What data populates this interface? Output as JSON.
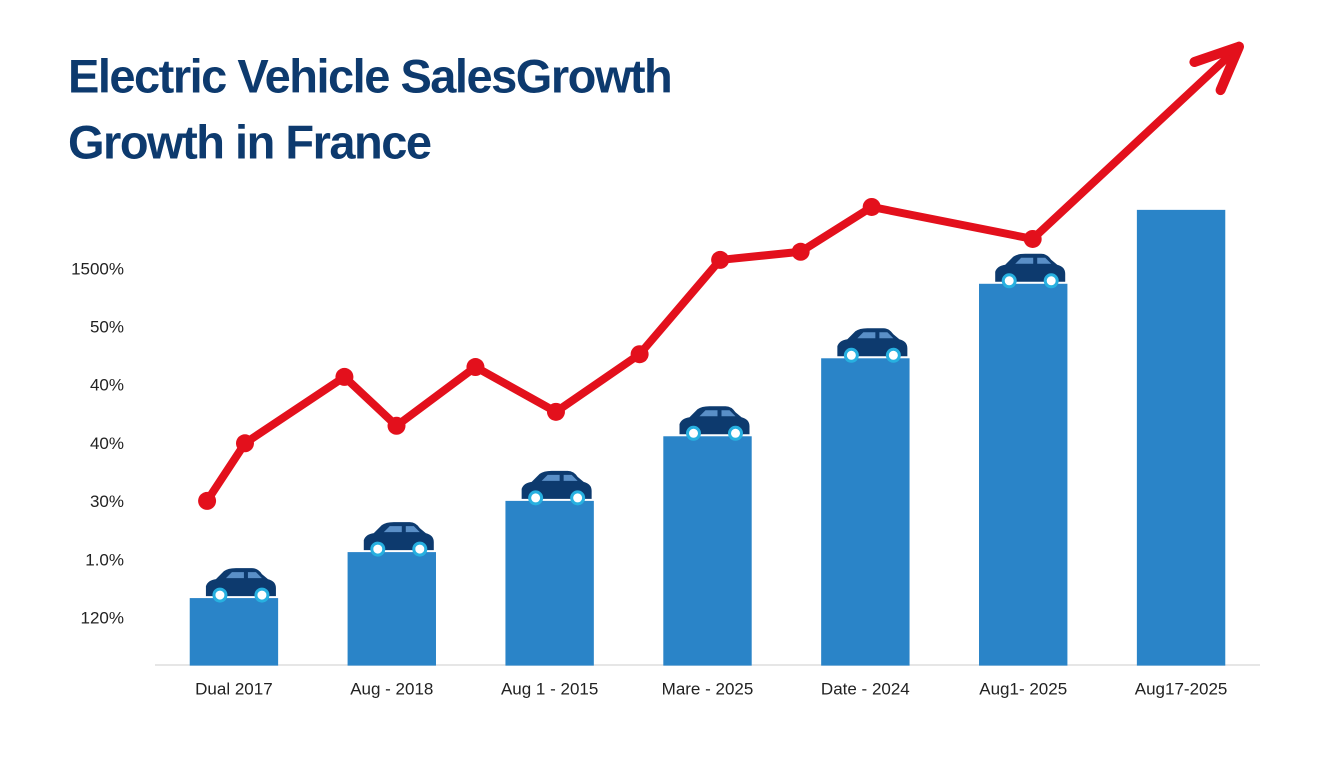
{
  "chart_data": {
    "type": "bar",
    "title": [
      "Electric Vehicle SalesGrowth",
      "Growth in France"
    ],
    "categories": [
      "Dual 2017",
      "Aug - 2018",
      "Aug 1 - 2015",
      "Mare - 2025",
      "Date - 2024",
      "Aug1- 2025",
      "Aug17-2025"
    ],
    "values": [
      1.36,
      2.15,
      3.03,
      4.14,
      5.48,
      6.76,
      8.03
    ],
    "color": "#2a84c8",
    "line": {
      "color": "#e3101c",
      "x": [
        -0.17,
        0.07,
        0.7,
        1.03,
        1.53,
        2.04,
        2.57,
        3.08,
        3.59,
        4.04,
        5.06,
        6.33
      ],
      "values": [
        3.03,
        4.02,
        5.16,
        4.32,
        5.33,
        4.56,
        5.55,
        7.17,
        7.31,
        8.08,
        7.53,
        10.74
      ]
    },
    "xlim": [
      -0.5,
      6.5
    ],
    "ylim": [
      0.2,
      11
    ],
    "yticks": [
      {
        "value": 7,
        "label": "1500%"
      },
      {
        "value": 6,
        "label": "50%"
      },
      {
        "value": 5,
        "label": "40%"
      },
      {
        "value": 4,
        "label": "40%"
      },
      {
        "value": 3,
        "label": "30%"
      },
      {
        "value": 2,
        "label": "1.0%"
      },
      {
        "value": 1,
        "label": "120%"
      }
    ]
  }
}
